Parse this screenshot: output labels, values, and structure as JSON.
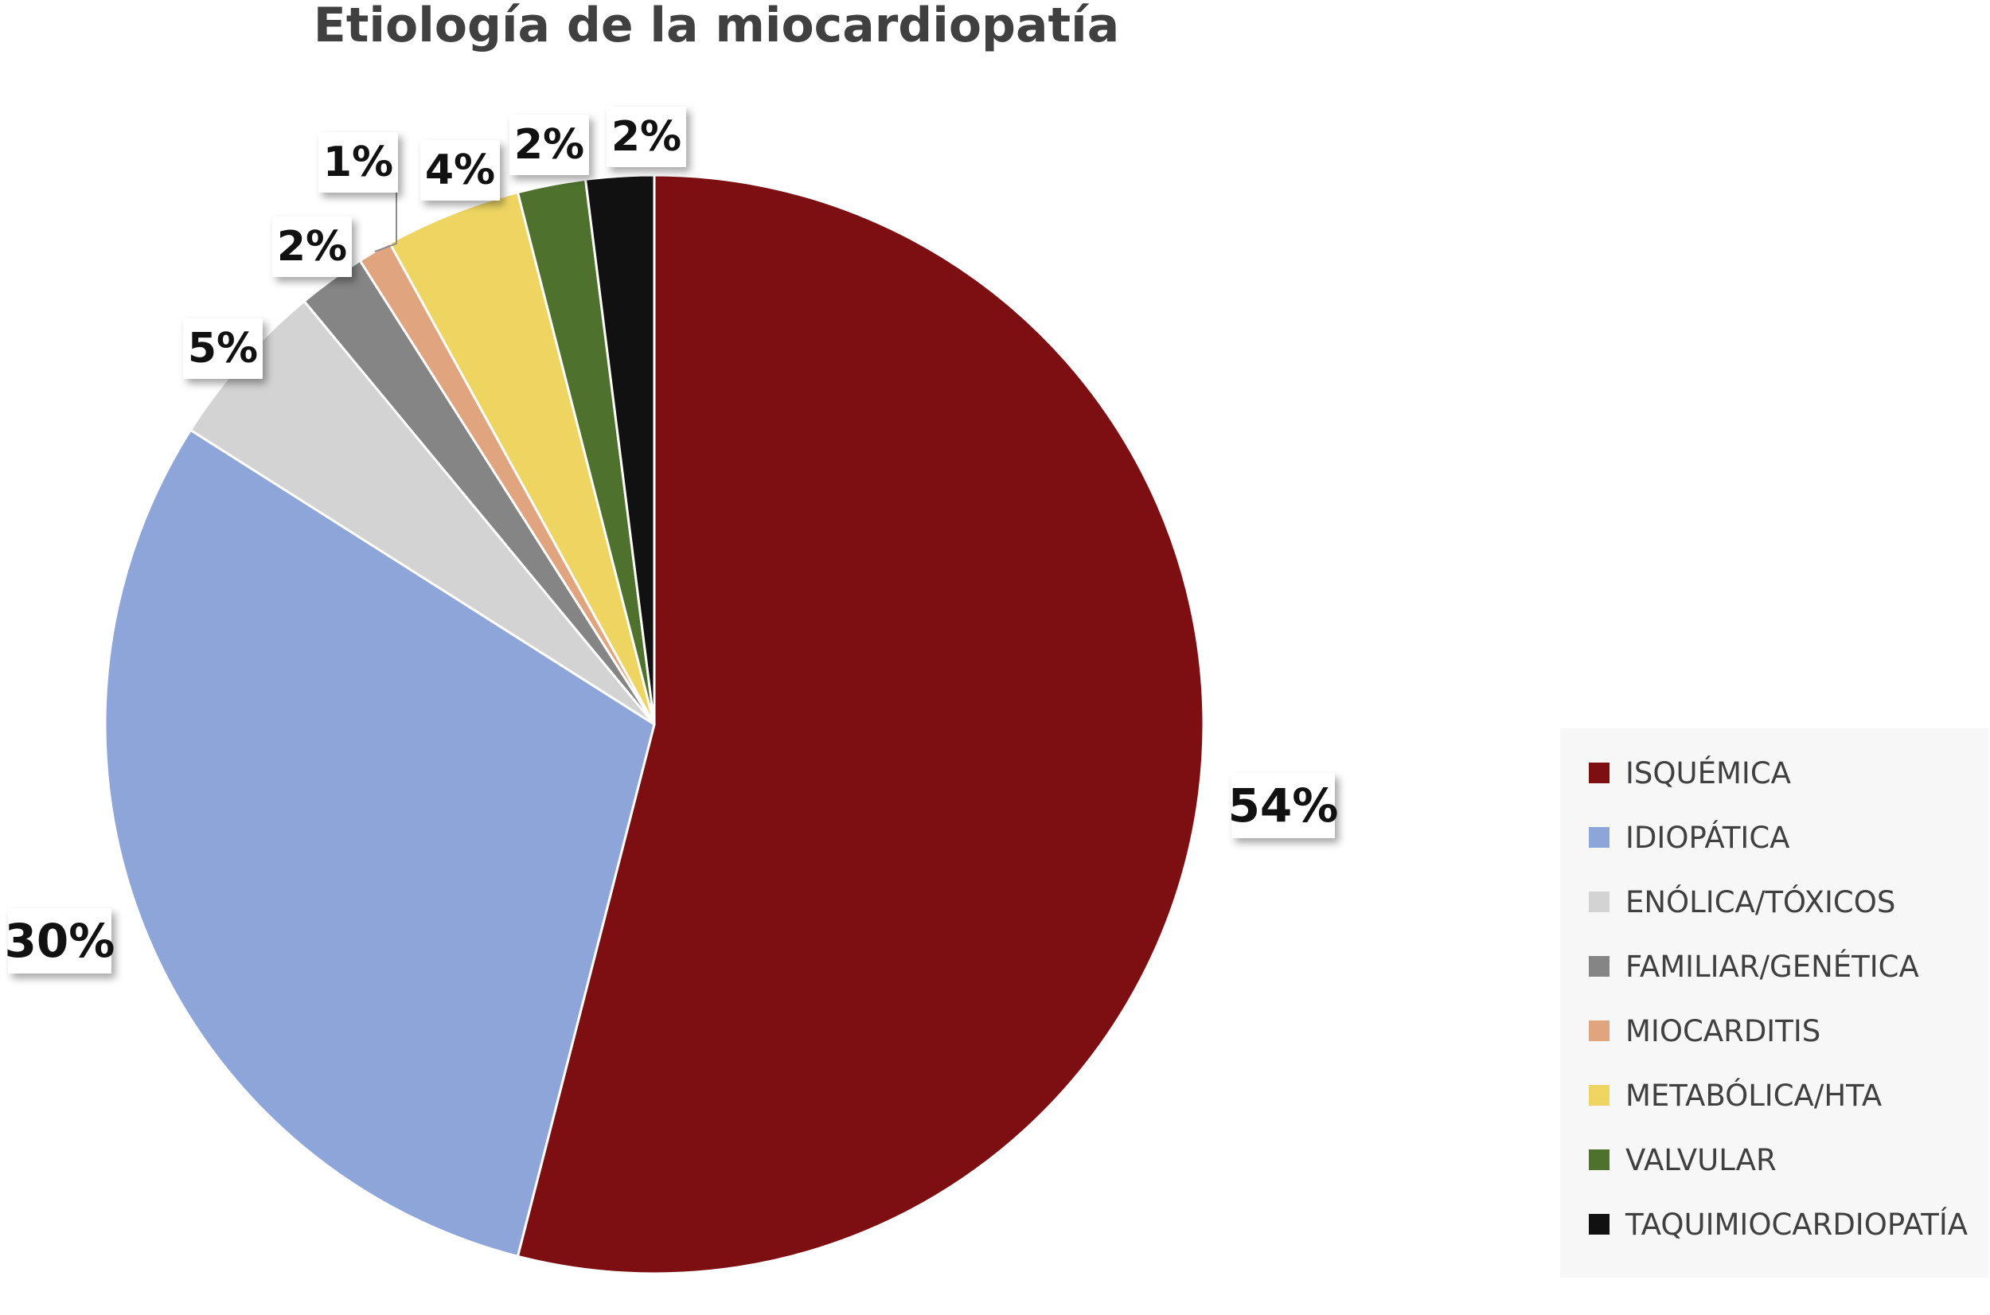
{
  "chart_data": {
    "type": "pie",
    "title": "Etiología de la miocardiopatía",
    "legend_position": "right",
    "slices": [
      {
        "label": "ISQUÉMICA",
        "value": 54,
        "display": "54%",
        "color": "#7d0f12"
      },
      {
        "label": "IDIOPÁTICA",
        "value": 30,
        "display": "30%",
        "color": "#8ea5da"
      },
      {
        "label": "ENÓLICA/TÓXICOS",
        "value": 5,
        "display": "5%",
        "color": "#d3d3d3"
      },
      {
        "label": "FAMILIAR/GENÉTICA",
        "value": 2,
        "display": "2%",
        "color": "#858585"
      },
      {
        "label": "MIOCARDITIS",
        "value": 1,
        "display": "1%",
        "color": "#e0a47f"
      },
      {
        "label": "METABÓLICA/HTA",
        "value": 4,
        "display": "4%",
        "color": "#eed562"
      },
      {
        "label": "VALVULAR",
        "value": 2,
        "display": "2%",
        "color": "#4e722e"
      },
      {
        "label": "TAQUIMIOCARDIOPATÍA",
        "value": 2,
        "display": "2%",
        "color": "#111111"
      }
    ]
  }
}
